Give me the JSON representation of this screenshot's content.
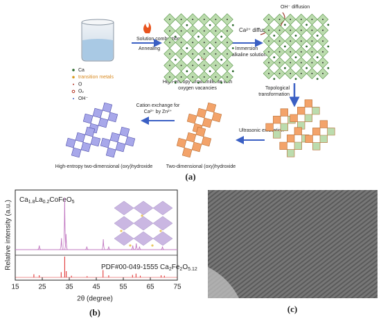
{
  "figure": {
    "panel_a": {
      "label": "(a)",
      "legend": [
        "Ca",
        "transition metals",
        "O",
        "Oᵥ",
        "OH⁻"
      ],
      "step1": {
        "above": "Solution combustion",
        "below": "Annealing"
      },
      "product1": [
        "High-entropy Brownmillerite with",
        "oxygen vacancies"
      ],
      "vacancy_mark": "Oᵥ",
      "oh_diffusion": "OH⁻ diffusion",
      "ca_diffusion": "Ca²⁺ diffusion",
      "step2": [
        "Immersion",
        "in alkaline solution"
      ],
      "step3": [
        "Topological",
        "transformation"
      ],
      "step4": "Ultrasonic exfoliation",
      "product2": "Two-dimensional (oxy)hydroxide",
      "step5": [
        "Cation exchange for",
        "Ca²⁺ by Zn²⁺"
      ],
      "product3": "High-entropy two-dimensional (oxy)hydroxide"
    },
    "panel_b": {
      "label": "(b)",
      "sample": [
        "Ca",
        "1.8",
        "La",
        "0.2",
        "CoFeO",
        "5"
      ],
      "reference": [
        "PDF#00-049-1555 Ca",
        "2",
        "Fe",
        "2",
        "O",
        "5.12"
      ],
      "ylabel": "Relative intensity (a.u.)",
      "xlabel": "2θ (degree)",
      "xlim": [
        15,
        75
      ],
      "xticks": [
        15,
        25,
        35,
        45,
        55,
        65,
        75
      ],
      "peaks": {
        "x": [
          23.9,
          32.1,
          33.3,
          33.8,
          41.5,
          47.6,
          49.6,
          58.5,
          59.8,
          61.0,
          69.5
        ],
        "heights": [
          8,
          22,
          100,
          30,
          6,
          20,
          6,
          8,
          12,
          6,
          6
        ]
      },
      "ref_lines": {
        "x": [
          21.9,
          23.9,
          32.0,
          33.3,
          33.9,
          35.8,
          41.6,
          47.5,
          49.6,
          58.4,
          59.7,
          61.3,
          69.0,
          70.2
        ],
        "heights": [
          15,
          10,
          25,
          100,
          30,
          8,
          6,
          35,
          10,
          12,
          18,
          8,
          10,
          8
        ]
      }
    },
    "panel_c": {
      "label": "(c)"
    }
  }
}
